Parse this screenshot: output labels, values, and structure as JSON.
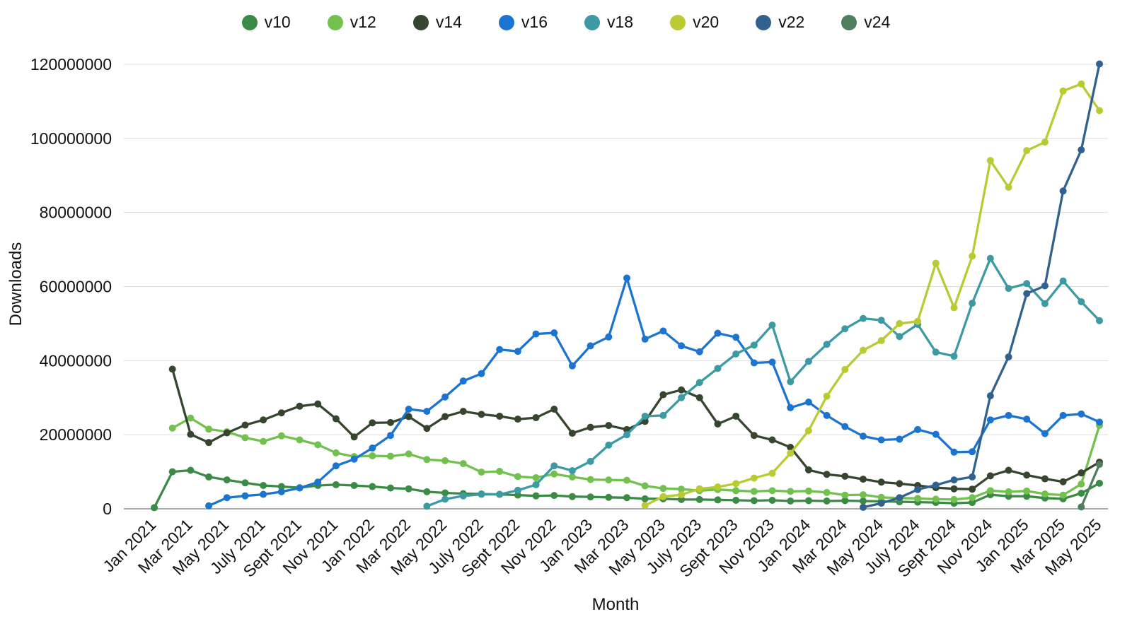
{
  "chart_data": {
    "type": "line",
    "title": "",
    "xlabel": "Month",
    "ylabel": "Downloads",
    "legend_position": "top",
    "grid": true,
    "ylim": [
      0,
      120000000
    ],
    "y_tick_step": 20000000,
    "x_tick_every": 2,
    "values_unit": "millions",
    "unit_multiplier": 1000000,
    "categories": [
      "Jan 2021",
      "Feb 2021",
      "Mar 2021",
      "Apr 2021",
      "May 2021",
      "June 2021",
      "July 2021",
      "Aug 2021",
      "Sept 2021",
      "Oct 2021",
      "Nov 2021",
      "Dec 2021",
      "Jan 2022",
      "Feb 2022",
      "Mar 2022",
      "Apr 2022",
      "May 2022",
      "June 2022",
      "July 2022",
      "Aug 2022",
      "Sept 2022",
      "Oct 2022",
      "Nov 2022",
      "Dec 2022",
      "Jan 2023",
      "Feb 2023",
      "Mar 2023",
      "Apr 2023",
      "May 2023",
      "June 2023",
      "July 2023",
      "Aug 2023",
      "Sept 2023",
      "Oct 2023",
      "Nov 2023",
      "Dec 2023",
      "Jan 2024",
      "Feb 2024",
      "Mar 2024",
      "Apr 2024",
      "May 2024",
      "June 2024",
      "July 2024",
      "Aug 2024",
      "Sept 2024",
      "Oct 2024",
      "Nov 2024",
      "Dec 2024",
      "Jan 2025",
      "Feb 2025",
      "Mar 2025",
      "Apr 2025",
      "May 2025"
    ],
    "series": [
      {
        "name": "v10",
        "color": "#3b8a45",
        "values": [
          0.3,
          10.0,
          10.4,
          8.6,
          7.8,
          7.0,
          6.3,
          6.0,
          5.7,
          6.3,
          6.5,
          6.3,
          6.0,
          5.6,
          5.4,
          4.6,
          4.3,
          4.1,
          4.0,
          3.9,
          3.7,
          3.5,
          3.6,
          3.3,
          3.2,
          3.1,
          3.0,
          2.7,
          2.7,
          2.5,
          2.5,
          2.4,
          2.3,
          2.2,
          2.3,
          2.1,
          2.2,
          2.1,
          2.2,
          2.1,
          2.0,
          1.9,
          1.8,
          1.7,
          1.5,
          1.7,
          3.8,
          3.4,
          3.4,
          2.9,
          2.7,
          4.2,
          6.9
        ]
      },
      {
        "name": "v12",
        "color": "#72c14f",
        "values": [
          null,
          21.8,
          24.5,
          21.5,
          20.8,
          19.2,
          18.2,
          19.7,
          18.6,
          17.3,
          15.1,
          14.1,
          14.3,
          14.2,
          14.8,
          13.3,
          13.0,
          12.2,
          9.9,
          10.1,
          8.7,
          8.4,
          9.4,
          8.6,
          7.9,
          7.8,
          7.7,
          6.2,
          5.5,
          5.3,
          4.9,
          5.2,
          4.9,
          4.7,
          4.9,
          4.7,
          4.8,
          4.4,
          3.7,
          3.8,
          3.1,
          2.9,
          2.8,
          2.6,
          2.5,
          3.0,
          4.9,
          4.6,
          4.8,
          4.0,
          3.7,
          6.7,
          22.5
        ]
      },
      {
        "name": "v14",
        "color": "#36452e",
        "values": [
          null,
          37.7,
          20.1,
          17.9,
          20.5,
          22.6,
          24.0,
          25.9,
          27.7,
          28.3,
          24.3,
          19.4,
          23.2,
          23.3,
          24.9,
          21.7,
          24.9,
          26.3,
          25.5,
          25.0,
          24.2,
          24.6,
          26.9,
          20.4,
          22.0,
          22.5,
          21.4,
          23.6,
          30.8,
          32.1,
          30.0,
          22.9,
          25.0,
          19.8,
          18.6,
          16.6,
          10.5,
          9.3,
          8.8,
          8.0,
          7.2,
          6.8,
          6.3,
          5.7,
          5.4,
          5.3,
          8.9,
          10.4,
          9.1,
          8.1,
          7.3,
          9.7,
          12.6
        ]
      },
      {
        "name": "v16",
        "color": "#1b75d0",
        "values": [
          null,
          null,
          null,
          0.8,
          3.0,
          3.5,
          3.9,
          4.6,
          5.6,
          7.2,
          11.6,
          13.4,
          16.4,
          19.8,
          26.9,
          26.3,
          30.2,
          34.5,
          36.5,
          43.0,
          42.5,
          47.2,
          47.5,
          38.6,
          44.0,
          46.4,
          62.3,
          45.8,
          48.0,
          44.0,
          42.4,
          47.4,
          46.3,
          39.4,
          39.6,
          27.3,
          28.8,
          25.2,
          22.2,
          19.6,
          18.6,
          18.8,
          21.4,
          20.1,
          15.3,
          15.4,
          24.0,
          25.2,
          24.2,
          20.3,
          25.2,
          25.6,
          23.4
        ]
      },
      {
        "name": "v18",
        "color": "#3c9aa3",
        "values": [
          null,
          null,
          null,
          null,
          null,
          null,
          null,
          null,
          null,
          null,
          null,
          null,
          null,
          null,
          null,
          0.7,
          2.6,
          3.5,
          3.9,
          3.9,
          5.0,
          6.5,
          11.6,
          10.3,
          12.8,
          17.2,
          20.0,
          25.0,
          25.2,
          30.0,
          34.1,
          37.9,
          41.8,
          44.2,
          49.6,
          34.3,
          39.8,
          44.4,
          48.6,
          51.4,
          50.9,
          46.5,
          49.8,
          42.3,
          41.2,
          55.5,
          67.6,
          59.5,
          60.8,
          55.4,
          61.5,
          55.9,
          50.8
        ]
      },
      {
        "name": "v20",
        "color": "#b9ca33",
        "values": [
          null,
          null,
          null,
          null,
          null,
          null,
          null,
          null,
          null,
          null,
          null,
          null,
          null,
          null,
          null,
          null,
          null,
          null,
          null,
          null,
          null,
          null,
          null,
          null,
          null,
          null,
          null,
          0.9,
          3.3,
          3.8,
          5.4,
          5.9,
          6.8,
          8.3,
          9.6,
          15.0,
          21.1,
          30.4,
          37.6,
          42.8,
          45.4,
          50.0,
          50.6,
          66.3,
          54.3,
          68.2,
          94.0,
          86.8,
          96.7,
          99.0,
          112.8,
          114.7,
          107.5
        ]
      },
      {
        "name": "v22",
        "color": "#31618f",
        "values": [
          null,
          null,
          null,
          null,
          null,
          null,
          null,
          null,
          null,
          null,
          null,
          null,
          null,
          null,
          null,
          null,
          null,
          null,
          null,
          null,
          null,
          null,
          null,
          null,
          null,
          null,
          null,
          null,
          null,
          null,
          null,
          null,
          null,
          null,
          null,
          null,
          null,
          null,
          null,
          0.4,
          1.5,
          3.0,
          5.2,
          6.4,
          7.8,
          8.6,
          30.5,
          41.0,
          58.1,
          60.2,
          85.8,
          96.9,
          120.1
        ]
      },
      {
        "name": "v24",
        "color": "#4e7e5b",
        "values": [
          null,
          null,
          null,
          null,
          null,
          null,
          null,
          null,
          null,
          null,
          null,
          null,
          null,
          null,
          null,
          null,
          null,
          null,
          null,
          null,
          null,
          null,
          null,
          null,
          null,
          null,
          null,
          null,
          null,
          null,
          null,
          null,
          null,
          null,
          null,
          null,
          null,
          null,
          null,
          null,
          null,
          null,
          null,
          null,
          null,
          null,
          null,
          null,
          null,
          null,
          null,
          0.5,
          12.0
        ]
      }
    ]
  }
}
